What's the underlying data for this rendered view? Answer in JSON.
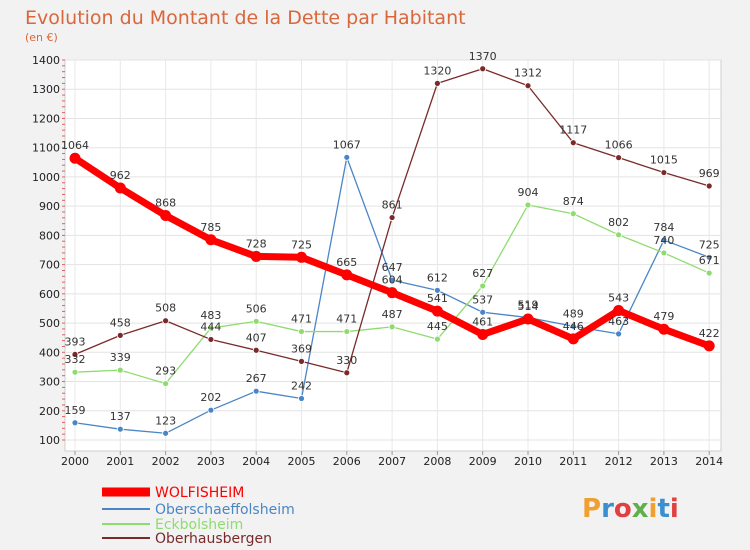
{
  "chart_data": {
    "type": "line",
    "title": "Evolution du Montant de la Dette par Habitant",
    "subtitle": "(en €)",
    "xlabel": "",
    "ylabel": "",
    "x": [
      "2000",
      "2001",
      "2002",
      "2003",
      "2004",
      "2005",
      "2006",
      "2007",
      "2008",
      "2009",
      "2010",
      "2011",
      "2012",
      "2013",
      "2014"
    ],
    "ylim": [
      100,
      1400
    ],
    "yticks": [
      100,
      200,
      300,
      400,
      500,
      600,
      700,
      800,
      900,
      1000,
      1100,
      1200,
      1300,
      1400
    ],
    "yticks_text": [
      "100",
      "200",
      "300",
      "400",
      "500",
      "600",
      "700",
      "800",
      "900",
      "1000",
      "1100",
      "1200",
      "1300",
      "1400"
    ],
    "grid": true,
    "legend_position": "bottom-left",
    "series": [
      {
        "name": "WOLFISHEIM",
        "color": "#ff0000",
        "values": [
          1064,
          962,
          868,
          785,
          728,
          725,
          665,
          604,
          541,
          461,
          514,
          446,
          543,
          479,
          422
        ],
        "labels": [
          "1064",
          "962",
          "868",
          "785",
          "728",
          "725",
          "665",
          "604",
          "541",
          "461",
          "514",
          "446",
          "543",
          "479",
          "422"
        ]
      },
      {
        "name": "Oberschaeffolsheim",
        "color": "#4a86c5",
        "values": [
          159,
          137,
          123,
          202,
          267,
          242,
          1067,
          647,
          612,
          537,
          519,
          489,
          463,
          784,
          725
        ],
        "labels": [
          "159",
          "137",
          "123",
          "202",
          "267",
          "242",
          "1067",
          "647",
          "612",
          "537",
          "519",
          "489",
          "463",
          "784",
          "725"
        ]
      },
      {
        "name": "Eckbolsheim",
        "color": "#8fdc6e",
        "values": [
          332,
          339,
          293,
          483,
          506,
          471,
          471,
          487,
          445,
          627,
          904,
          874,
          802,
          740,
          671
        ],
        "labels": [
          "332",
          "339",
          "293",
          "483",
          "506",
          "471",
          "471",
          "487",
          "445",
          "627",
          "904",
          "874",
          "802",
          "740",
          "671"
        ]
      },
      {
        "name": "Oberhausbergen",
        "color": "#7a2a2a",
        "values": [
          393,
          458,
          508,
          444,
          407,
          369,
          330,
          861,
          1320,
          1370,
          1312,
          1117,
          1066,
          1015,
          969
        ],
        "labels": [
          "393",
          "458",
          "508",
          "444",
          "407",
          "369",
          "330",
          "861",
          "1320",
          "1370",
          "1312",
          "1117",
          "1066",
          "1015",
          "969"
        ]
      }
    ]
  },
  "watermark": {
    "text": "Proxiti",
    "colors": [
      "#f0a030",
      "#3a8fd0",
      "#e04040",
      "#5fb04a"
    ]
  }
}
